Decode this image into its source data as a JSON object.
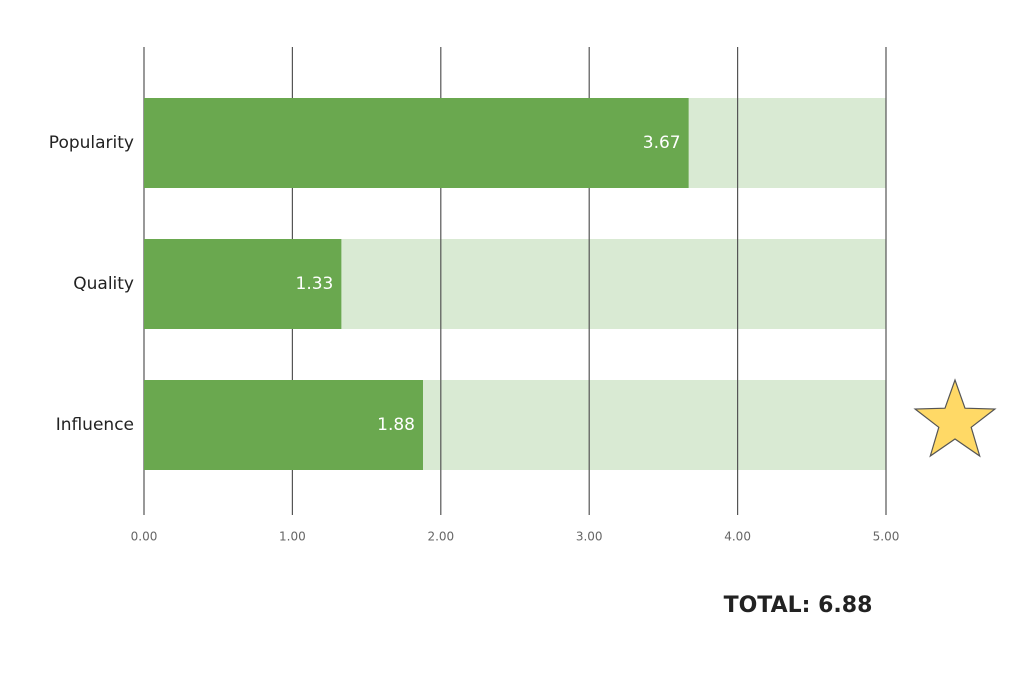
{
  "chart_data": {
    "type": "bar",
    "orientation": "horizontal",
    "categories": [
      "Popularity",
      "Quality",
      "Influence"
    ],
    "values": [
      3.67,
      1.33,
      1.88
    ],
    "color": "#6aa84f",
    "track_color": "#d9ead3",
    "xlim": [
      0,
      5
    ],
    "xticks": [
      {
        "value": 0,
        "label": "0.00"
      },
      {
        "value": 1,
        "label": "1.00"
      },
      {
        "value": 2,
        "label": "2.00"
      },
      {
        "value": 3,
        "label": "3.00"
      },
      {
        "value": 4,
        "label": "4.00"
      },
      {
        "value": 5,
        "label": "5.00"
      }
    ],
    "grid": true,
    "annotation": "TOTAL: 6.88"
  }
}
